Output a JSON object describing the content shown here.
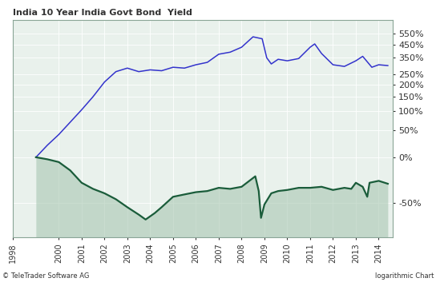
{
  "chart_data": {
    "type": "line",
    "title": "India 10 Year India Govt Bond  Yield",
    "annotations": [
      "© TeleTrader Software AG",
      "logarithmic Chart"
    ],
    "log": "y",
    "grid": true,
    "xlim": [
      1998,
      2014.6
    ],
    "xticks": [
      1998,
      2000,
      2001,
      2002,
      2003,
      2004,
      2005,
      2006,
      2007,
      2008,
      2009,
      2010,
      2011,
      2012,
      2013,
      2014
    ],
    "ylim": [
      -70,
      700
    ],
    "yticks": [
      {
        "value": -50,
        "label": "-50%"
      },
      {
        "value": 0,
        "label": "0%"
      },
      {
        "value": 50,
        "label": "50%"
      },
      {
        "value": 100,
        "label": "100%"
      },
      {
        "value": 150,
        "label": "150%"
      },
      {
        "value": 200,
        "label": "200%"
      },
      {
        "value": 250,
        "label": "250%"
      },
      {
        "value": 350,
        "label": "350%"
      },
      {
        "value": 450,
        "label": "450%"
      },
      {
        "value": 550,
        "label": "550%"
      }
    ],
    "series": [
      {
        "color": "#3333cc",
        "x": [
          1999.0,
          1999.5,
          2000.0,
          2000.5,
          2001.0,
          2001.5,
          2002.0,
          2002.5,
          2003.0,
          2003.5,
          2004.0,
          2004.5,
          2005.0,
          2005.5,
          2006.0,
          2006.5,
          2007.0,
          2007.5,
          2008.0,
          2008.5,
          2008.9,
          2009.1,
          2009.3,
          2009.6,
          2010.0,
          2010.5,
          2011.0,
          2011.2,
          2011.5,
          2012.0,
          2012.5,
          2013.0,
          2013.3,
          2013.7,
          2014.0,
          2014.4
        ],
        "values": [
          0,
          20,
          41,
          70,
          105,
          150,
          212,
          265,
          285,
          265,
          275,
          270,
          290,
          285,
          305,
          320,
          375,
          390,
          428,
          518,
          500,
          350,
          310,
          340,
          330,
          345,
          428,
          455,
          380,
          305,
          295,
          330,
          360,
          290,
          305,
          300
        ]
      },
      {
        "color": "#1a5c3a",
        "x": [
          1999.0,
          1999.5,
          2000.0,
          2000.5,
          2001.0,
          2001.5,
          2002.0,
          2002.5,
          2003.0,
          2003.5,
          2003.8,
          2004.2,
          2004.5,
          2005.0,
          2005.5,
          2006.0,
          2006.5,
          2007.0,
          2007.5,
          2008.0,
          2008.6,
          2008.75,
          2008.85,
          2009.0,
          2009.3,
          2009.6,
          2010.0,
          2010.5,
          2011.0,
          2011.5,
          2012.0,
          2012.5,
          2012.8,
          2013.0,
          2013.3,
          2013.5,
          2013.6,
          2014.0,
          2014.4
        ],
        "values": [
          0,
          -3,
          -7,
          -18,
          -32,
          -38,
          -42,
          -47,
          -53,
          -58,
          -61,
          -57,
          -53,
          -45,
          -43,
          -41,
          -40,
          -37,
          -38,
          -36,
          -25,
          -40,
          -60,
          -51,
          -42,
          -40,
          -39,
          -37,
          -37,
          -36,
          -39,
          -37,
          -38,
          -32,
          -36,
          -45,
          -32,
          -30,
          -33
        ]
      }
    ]
  }
}
